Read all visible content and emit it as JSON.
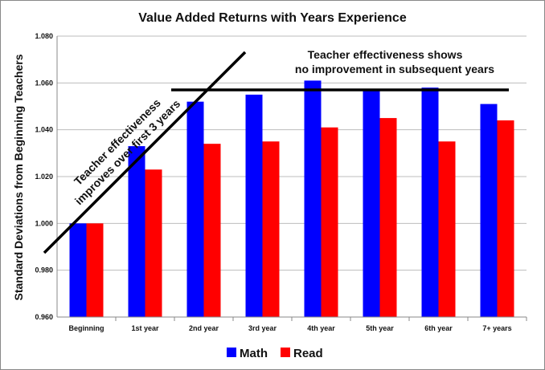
{
  "chart_data": {
    "type": "bar",
    "title": "Value Added Returns with Years Experience",
    "ylabel": "Standard Deviations from Beginning Teachers",
    "xlabel": "",
    "categories": [
      "Beginning",
      "1st year",
      "2nd year",
      "3rd year",
      "4th year",
      "5th year",
      "6th year",
      "7+ years"
    ],
    "series": [
      {
        "name": "Math",
        "color": "#0000ff",
        "values": [
          1.0,
          1.033,
          1.052,
          1.055,
          1.061,
          1.057,
          1.058,
          1.051
        ]
      },
      {
        "name": "Read",
        "color": "#ff0000",
        "values": [
          1.0,
          1.023,
          1.034,
          1.035,
          1.041,
          1.045,
          1.035,
          1.044
        ]
      }
    ],
    "ylim": [
      0.96,
      1.08
    ],
    "yticks": [
      "0.960",
      "0.980",
      "1.000",
      "1.020",
      "1.040",
      "1.060",
      "1.080"
    ],
    "grid": true,
    "legend": "bottom",
    "annotations": {
      "rising": {
        "lines": [
          "Teacher effectiveness",
          "improves over first 3 years"
        ]
      },
      "plateau": {
        "lines": [
          "Teacher effectiveness shows",
          "no improvement in subsequent years"
        ]
      }
    }
  }
}
